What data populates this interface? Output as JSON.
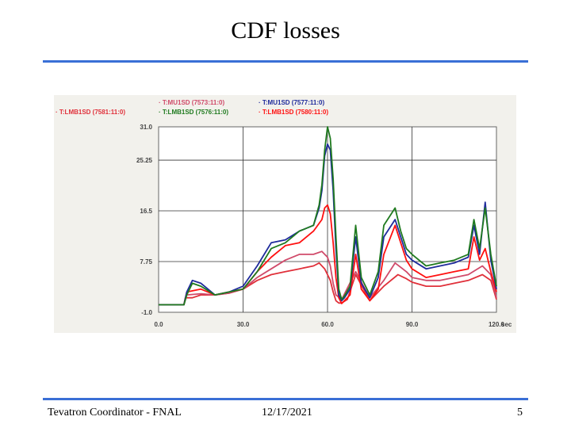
{
  "slide": {
    "title": "CDF losses",
    "footer_left": "Tevatron Coordinator - FNAL",
    "footer_center": "12/17/2021",
    "page_number": "5"
  },
  "colors": {
    "accent_rule": "#3a6fd6",
    "panel_background": "#f2f1ec",
    "plot_background": "#ffffff"
  },
  "chart_data": {
    "type": "line",
    "title": "",
    "xlabel": "",
    "ylabel": "",
    "x_unit": "sec",
    "xlim": [
      0,
      120
    ],
    "ylim": [
      -1,
      31
    ],
    "x_ticks": [
      0,
      30,
      60,
      90,
      120
    ],
    "x_tick_labels": [
      "0.0",
      "30.0",
      "60.0",
      "90.0",
      "120.0"
    ],
    "y_ticks": [
      31,
      25.25,
      16.5,
      7.75,
      -1
    ],
    "y_tick_labels": [
      "31.0",
      "25.25",
      "16.5",
      "7.75",
      "-1.0"
    ],
    "grid": true,
    "legend_placement": "top",
    "series": [
      {
        "name": "T:LMB1SD (7581:11:0)",
        "color": "#e0303a",
        "x": [
          0,
          5,
          9,
          9.5,
          12,
          15,
          20,
          25,
          30,
          35,
          40,
          45,
          50,
          55,
          57,
          59,
          60,
          61,
          62,
          63,
          64,
          65,
          67,
          70,
          75,
          80,
          85,
          88,
          90,
          95,
          100,
          105,
          110,
          115,
          118,
          120
        ],
        "y": [
          0.3,
          0.3,
          0.3,
          1.5,
          1.5,
          2.0,
          2.0,
          2.3,
          3.0,
          4.5,
          5.5,
          6.0,
          6.5,
          7.0,
          7.5,
          6.5,
          5.5,
          4.5,
          2.5,
          1.0,
          0.6,
          0.6,
          1.2,
          5.5,
          1.0,
          3.5,
          5.5,
          4.8,
          4.2,
          3.5,
          3.5,
          4.0,
          4.5,
          5.5,
          4.5,
          1.2
        ]
      },
      {
        "name": "T:MU1SD (7573:11:0)",
        "color": "#d04a6a",
        "x": [
          0,
          5,
          9,
          10,
          15,
          20,
          25,
          30,
          35,
          40,
          45,
          50,
          55,
          58,
          60,
          61,
          62,
          63,
          65,
          70,
          75,
          80,
          84,
          88,
          90,
          95,
          100,
          105,
          110,
          115,
          118,
          120
        ],
        "y": [
          0.3,
          0.3,
          0.3,
          2.0,
          2.2,
          2.0,
          2.3,
          3.0,
          5.0,
          6.5,
          8.0,
          9.0,
          9.0,
          9.5,
          8.5,
          7.0,
          4.0,
          2.0,
          1.2,
          6.0,
          1.5,
          4.5,
          7.5,
          6.0,
          5.0,
          4.5,
          4.5,
          5.0,
          5.5,
          7.0,
          5.5,
          1.5
        ]
      },
      {
        "name": "T:LMB1SD (7580:11:0)",
        "color": "#ff1010",
        "x": [
          0,
          5,
          9,
          10,
          15,
          20,
          25,
          30,
          35,
          40,
          45,
          50,
          55,
          58,
          59,
          60,
          61,
          62,
          63,
          64,
          65,
          66,
          68,
          70,
          72,
          75,
          78,
          80,
          84,
          86,
          88,
          90,
          95,
          100,
          105,
          110,
          112,
          114,
          116,
          118,
          120
        ],
        "y": [
          0.3,
          0.3,
          0.3,
          2.5,
          3.0,
          2.0,
          2.5,
          3.0,
          6.0,
          8.5,
          10.5,
          11.0,
          13.0,
          15.0,
          17.0,
          17.5,
          16.0,
          11.0,
          5.0,
          1.5,
          0.5,
          1.0,
          2.0,
          9.0,
          3.0,
          1.0,
          3.0,
          9.0,
          14.0,
          11.0,
          8.0,
          6.5,
          5.0,
          5.5,
          6.0,
          6.5,
          12.0,
          8.0,
          10.0,
          6.0,
          2.5
        ]
      },
      {
        "name": "T:MU1SD (7577:11:0)",
        "color": "#1f2b9c",
        "x": [
          0,
          5,
          9,
          10,
          12,
          15,
          20,
          25,
          30,
          35,
          40,
          45,
          50,
          55,
          57,
          58,
          59,
          60,
          61,
          62,
          63,
          64,
          65,
          66,
          68,
          70,
          72,
          75,
          78,
          80,
          84,
          86,
          88,
          90,
          95,
          100,
          105,
          110,
          112,
          114,
          116,
          118,
          120
        ],
        "y": [
          0.3,
          0.3,
          0.3,
          2.5,
          4.5,
          4.0,
          2.0,
          2.5,
          3.5,
          7.0,
          11.0,
          11.5,
          13.0,
          14.0,
          17.0,
          20.0,
          26.0,
          28.0,
          27.0,
          20.0,
          10.0,
          2.0,
          1.0,
          1.5,
          3.0,
          12.0,
          4.0,
          1.5,
          5.0,
          12.0,
          15.0,
          12.0,
          9.0,
          8.0,
          6.5,
          7.0,
          7.5,
          8.5,
          14.0,
          9.0,
          18.0,
          8.0,
          3.0
        ]
      },
      {
        "name": "T:LMB1SD (7576:11:0)",
        "color": "#1f7a1f",
        "x": [
          0,
          5,
          9,
          10,
          12,
          15,
          20,
          25,
          30,
          35,
          40,
          45,
          50,
          55,
          57,
          58,
          59,
          60,
          61,
          62,
          63,
          64,
          65,
          66,
          68,
          70,
          72,
          75,
          78,
          80,
          84,
          86,
          88,
          90,
          95,
          100,
          105,
          110,
          112,
          114,
          116,
          118,
          120
        ],
        "y": [
          0.3,
          0.3,
          0.3,
          2.0,
          4.0,
          3.5,
          2.0,
          2.5,
          3.0,
          6.0,
          10.0,
          11.0,
          13.0,
          14.0,
          17.5,
          21.0,
          27.0,
          31.0,
          29.0,
          22.0,
          12.0,
          3.0,
          1.2,
          1.8,
          3.5,
          14.0,
          5.0,
          2.0,
          6.0,
          14.0,
          17.0,
          13.0,
          10.0,
          9.0,
          7.0,
          7.5,
          8.0,
          9.0,
          15.0,
          10.0,
          17.0,
          9.0,
          3.5
        ]
      }
    ]
  }
}
